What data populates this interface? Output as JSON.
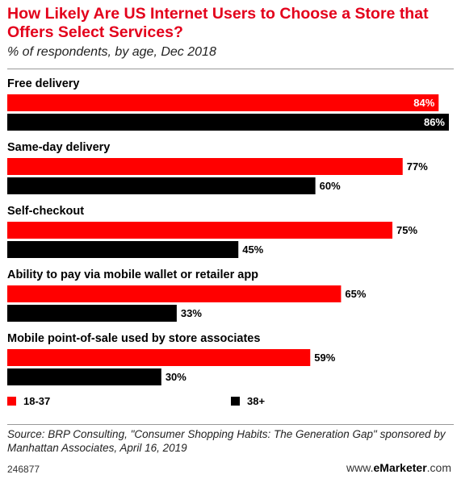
{
  "header": {
    "title": "How Likely Are US Internet Users to Choose a Store that Offers Select Services?",
    "subtitle": "% of respondents, by age, Dec 2018"
  },
  "chart_data": {
    "type": "bar",
    "orientation": "horizontal",
    "categories": [
      "Free delivery",
      "Same-day delivery",
      "Self-checkout",
      "Ability to pay via mobile wallet or retailer app",
      "Mobile point-of-sale used by store associates"
    ],
    "series": [
      {
        "name": "18-37",
        "color": "#ff0000",
        "values": [
          84,
          77,
          75,
          65,
          59
        ]
      },
      {
        "name": "38+",
        "color": "#000000",
        "values": [
          86,
          60,
          45,
          33,
          30
        ]
      }
    ],
    "value_suffix": "%",
    "xlim": [
      0,
      86
    ],
    "legend_position": "bottom",
    "grid": false
  },
  "footer": {
    "source": "Source: BRP Consulting, \"Consumer Shopping Habits: The Generation Gap\" sponsored by Manhattan Associates, April 16, 2019",
    "chart_id": "246877",
    "brand_prefix": "www.",
    "brand_name": "eMarketer",
    "brand_suffix": ".com"
  }
}
